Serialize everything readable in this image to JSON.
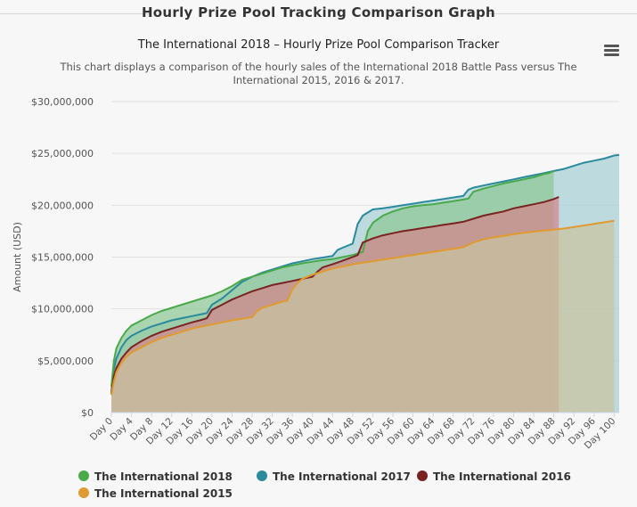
{
  "panel": {
    "title": "Hourly Prize Pool Tracking Comparison Graph"
  },
  "menu": {
    "icon": "hamburger-menu-icon"
  },
  "chart_data": {
    "type": "area",
    "title": "The International 2018 – Hourly Prize Pool Comparison Tracker",
    "subtitle": "This chart displays a comparison of the hourly sales of the International 2018 Battle Pass versus The International 2015, 2016 & 2017.",
    "ylabel": "Amount (USD)",
    "xlabel": "",
    "xlim": [
      0,
      101
    ],
    "ylim": [
      0,
      30000000
    ],
    "yticks": [
      "$0",
      "$5,000,000",
      "$10,000,000",
      "$15,000,000",
      "$20,000,000",
      "$25,000,000",
      "$30,000,000"
    ],
    "ytick_values": [
      0,
      5000000,
      10000000,
      15000000,
      20000000,
      25000000,
      30000000
    ],
    "xticks": [
      "Day 0",
      "Day 4",
      "Day 8",
      "Day 12",
      "Day 16",
      "Day 20",
      "Day 24",
      "Day 28",
      "Day 32",
      "Day 36",
      "Day 40",
      "Day 44",
      "Day 48",
      "Day 52",
      "Day 56",
      "Day 60",
      "Day 64",
      "Day 68",
      "Day 72",
      "Day 76",
      "Day 80",
      "Day 84",
      "Day 88",
      "Day 92",
      "Day 96",
      "Day 100"
    ],
    "xtick_values": [
      0,
      4,
      8,
      12,
      16,
      20,
      24,
      28,
      32,
      36,
      40,
      44,
      48,
      52,
      56,
      60,
      64,
      68,
      72,
      76,
      80,
      84,
      88,
      92,
      96,
      100
    ],
    "grid": true,
    "legend_position": "bottom",
    "series": [
      {
        "name": "The International 2017",
        "color": "#2b8a9c",
        "fill": "#a6cfd6",
        "x": [
          0,
          0.5,
          1,
          2,
          3,
          4,
          6,
          8,
          10,
          12,
          14,
          16,
          18,
          19,
          20,
          22,
          24,
          26,
          28,
          30,
          32,
          34,
          36,
          38,
          40,
          42,
          44,
          45,
          46,
          48,
          49,
          50,
          52,
          54,
          56,
          58,
          60,
          62,
          64,
          66,
          68,
          70,
          71,
          72,
          74,
          76,
          78,
          80,
          82,
          84,
          86,
          88,
          90,
          92,
          94,
          96,
          98,
          100,
          101
        ],
        "values": [
          2000000,
          4200000,
          5200000,
          6300000,
          7000000,
          7400000,
          7900000,
          8300000,
          8600000,
          8900000,
          9100000,
          9300000,
          9500000,
          9600000,
          10400000,
          11000000,
          11800000,
          12600000,
          13100000,
          13500000,
          13800000,
          14100000,
          14400000,
          14600000,
          14800000,
          14950000,
          15100000,
          15700000,
          15900000,
          16300000,
          18200000,
          19000000,
          19600000,
          19700000,
          19850000,
          20000000,
          20150000,
          20300000,
          20450000,
          20600000,
          20750000,
          20900000,
          21500000,
          21700000,
          21900000,
          22100000,
          22300000,
          22500000,
          22700000,
          22900000,
          23100000,
          23300000,
          23500000,
          23800000,
          24100000,
          24300000,
          24500000,
          24800000,
          24850000
        ]
      },
      {
        "name": "The International 2018",
        "color": "#4aa94a",
        "fill": "#8dc796",
        "x": [
          0,
          0.5,
          1,
          2,
          3,
          4,
          6,
          8,
          10,
          12,
          14,
          16,
          18,
          20,
          22,
          24,
          26,
          28,
          30,
          32,
          34,
          36,
          38,
          40,
          42,
          44,
          46,
          48,
          50,
          51,
          52,
          54,
          56,
          58,
          60,
          62,
          64,
          66,
          68,
          70,
          71,
          72,
          74,
          76,
          78,
          80,
          82,
          84,
          86,
          87,
          88
        ],
        "values": [
          2500000,
          5000000,
          6200000,
          7200000,
          7900000,
          8400000,
          8900000,
          9400000,
          9800000,
          10100000,
          10400000,
          10700000,
          11000000,
          11300000,
          11700000,
          12200000,
          12800000,
          13100000,
          13400000,
          13700000,
          14000000,
          14200000,
          14400000,
          14550000,
          14700000,
          14800000,
          15000000,
          15200000,
          15500000,
          17500000,
          18300000,
          19000000,
          19400000,
          19700000,
          19900000,
          20000000,
          20100000,
          20250000,
          20400000,
          20550000,
          20650000,
          21300000,
          21600000,
          21850000,
          22100000,
          22300000,
          22500000,
          22700000,
          23000000,
          23100000,
          23300000
        ]
      },
      {
        "name": "The International 2016",
        "color": "#7a2323",
        "fill": "#d4838b",
        "x": [
          0,
          0.5,
          1,
          2,
          3,
          4,
          6,
          8,
          10,
          12,
          14,
          16,
          18,
          19,
          20,
          22,
          24,
          26,
          28,
          30,
          32,
          34,
          36,
          38,
          40,
          41,
          42,
          44,
          46,
          48,
          49,
          50,
          52,
          54,
          56,
          58,
          60,
          62,
          64,
          66,
          68,
          70,
          72,
          74,
          76,
          78,
          80,
          82,
          84,
          86,
          88,
          89
        ],
        "values": [
          1800000,
          3500000,
          4300000,
          5200000,
          5800000,
          6300000,
          6900000,
          7400000,
          7800000,
          8100000,
          8400000,
          8700000,
          8950000,
          9100000,
          9900000,
          10400000,
          10900000,
          11300000,
          11700000,
          12000000,
          12300000,
          12500000,
          12700000,
          12900000,
          13100000,
          13600000,
          14000000,
          14300000,
          14650000,
          15000000,
          15200000,
          16400000,
          16800000,
          17100000,
          17300000,
          17500000,
          17650000,
          17800000,
          17950000,
          18100000,
          18250000,
          18400000,
          18700000,
          19000000,
          19200000,
          19400000,
          19700000,
          19900000,
          20100000,
          20300000,
          20600000,
          20800000
        ]
      },
      {
        "name": "The International 2015",
        "color": "#e09a2f",
        "fill": "#c7c4a0",
        "x": [
          0,
          0.5,
          1,
          2,
          3,
          4,
          6,
          8,
          10,
          12,
          14,
          16,
          18,
          20,
          22,
          24,
          26,
          28,
          29,
          30,
          32,
          34,
          35,
          36,
          37,
          38,
          40,
          42,
          44,
          46,
          48,
          50,
          52,
          54,
          56,
          58,
          60,
          62,
          64,
          66,
          68,
          70,
          72,
          74,
          76,
          78,
          80,
          82,
          84,
          86,
          88,
          90,
          92,
          94,
          96,
          98,
          100
        ],
        "values": [
          1700000,
          3000000,
          3900000,
          4800000,
          5400000,
          5800000,
          6300000,
          6800000,
          7200000,
          7500000,
          7800000,
          8100000,
          8300000,
          8500000,
          8700000,
          8900000,
          9050000,
          9200000,
          9800000,
          10100000,
          10400000,
          10700000,
          10800000,
          11900000,
          12500000,
          12900000,
          13300000,
          13600000,
          13900000,
          14100000,
          14300000,
          14450000,
          14600000,
          14750000,
          14900000,
          15050000,
          15200000,
          15350000,
          15500000,
          15650000,
          15800000,
          15950000,
          16400000,
          16700000,
          16900000,
          17050000,
          17200000,
          17350000,
          17450000,
          17550000,
          17650000,
          17750000,
          17900000,
          18050000,
          18200000,
          18350000,
          18500000
        ]
      }
    ]
  },
  "legend": {
    "items": [
      {
        "label": "The International 2018",
        "color": "#4aa94a"
      },
      {
        "label": "The International 2017",
        "color": "#2b8a9c"
      },
      {
        "label": "The International 2016",
        "color": "#7a2323"
      },
      {
        "label": "The International 2015",
        "color": "#e09a2f"
      }
    ]
  }
}
